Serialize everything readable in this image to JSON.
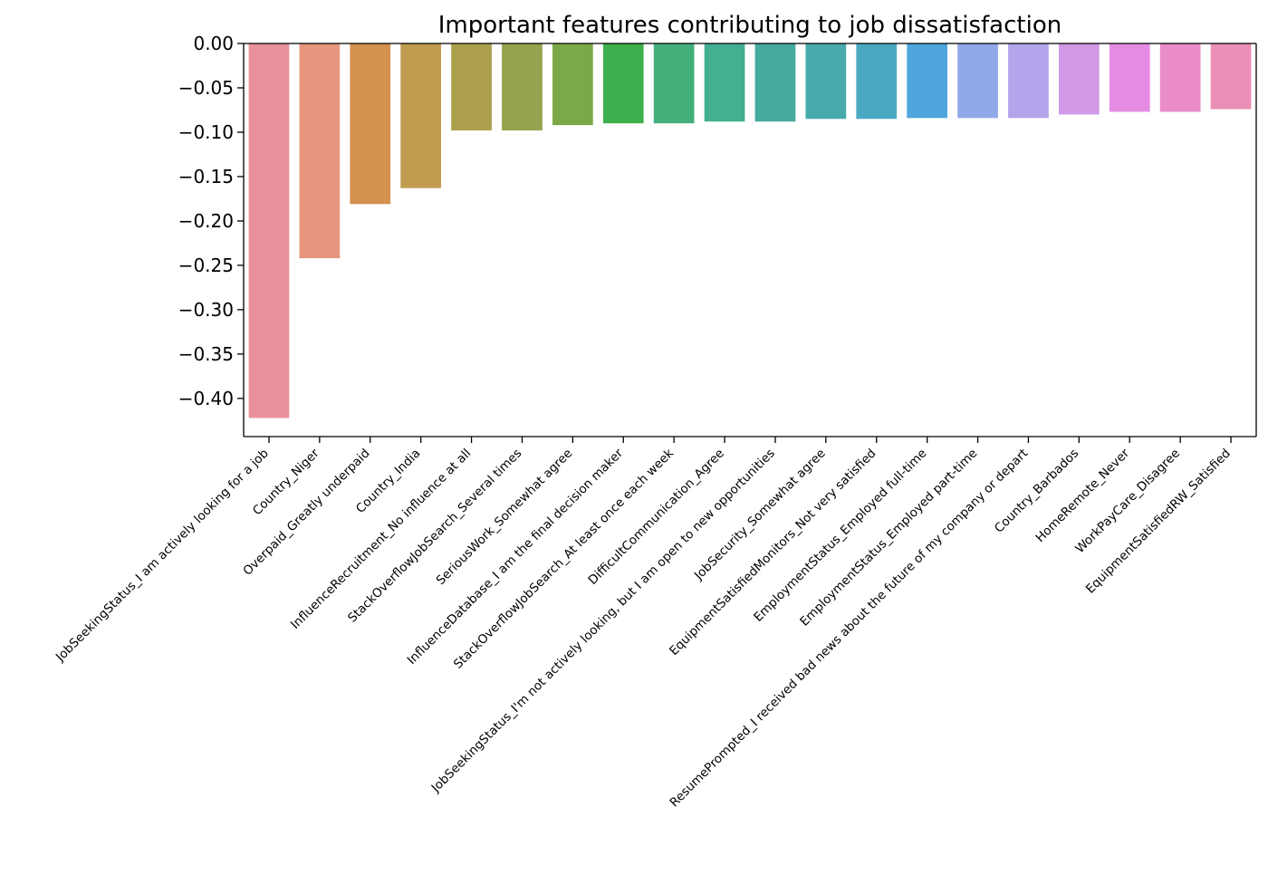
{
  "chart_data": {
    "type": "bar",
    "title": "Important features contributing to job dissatisfaction",
    "xlabel": "",
    "ylabel": "",
    "ylim": [
      -0.443,
      0.0
    ],
    "yticks": [
      0.0,
      -0.05,
      -0.1,
      -0.15,
      -0.2,
      -0.25,
      -0.3,
      -0.35,
      -0.4
    ],
    "ytick_labels": [
      "0.00",
      "−0.05",
      "−0.10",
      "−0.15",
      "−0.20",
      "−0.25",
      "−0.30",
      "−0.35",
      "−0.40"
    ],
    "grid": false,
    "categories": [
      "JobSeekingStatus_I am actively looking for a job",
      "Country_Niger",
      "Overpaid_Greatly underpaid",
      "Country_India",
      "InfluenceRecruitment_No influence at all",
      "StackOverflowJobSearch_Several times",
      "SeriousWork_Somewhat agree",
      "InfluenceDatabase_I am the final decision maker",
      "StackOverflowJobSearch_At least once each week",
      "DifficultCommunication_Agree",
      "JobSeekingStatus_I'm not actively looking, but I am open to new opportunities",
      "JobSecurity_Somewhat agree",
      "EquipmentSatisfiedMonitors_Not very satisfied",
      "EmploymentStatus_Employed full-time",
      "EmploymentStatus_Employed part-time",
      "ResumePrompted_I received bad news about the future of my company or depart",
      "Country_Barbados",
      "HomeRemote_Never",
      "WorkPayCare_Disagree",
      "EquipmentSatisfiedRW_Satisfied"
    ],
    "values": [
      -0.422,
      -0.242,
      -0.181,
      -0.163,
      -0.098,
      -0.098,
      -0.092,
      -0.09,
      -0.09,
      -0.088,
      -0.088,
      -0.085,
      -0.085,
      -0.084,
      -0.084,
      -0.084,
      -0.08,
      -0.077,
      -0.077,
      -0.074
    ],
    "colors": [
      "#e8919c",
      "#e6967e",
      "#d4924f",
      "#c19c50",
      "#aca04e",
      "#96a24d",
      "#7ca947",
      "#3eb04d",
      "#43b07c",
      "#44af91",
      "#45ab9f",
      "#47aaac",
      "#4aa9c2",
      "#4fa5de",
      "#92a9e8",
      "#b3a4ec",
      "#d198e6",
      "#e68be4",
      "#ea8cc8",
      "#ea8fb6"
    ]
  }
}
